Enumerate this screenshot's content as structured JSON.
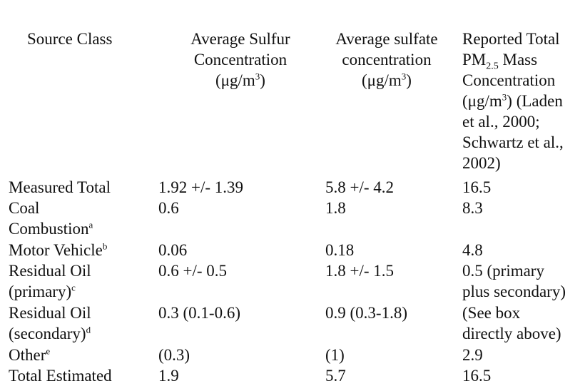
{
  "table": {
    "headers": {
      "source_class": "Source Class",
      "sulfur": {
        "line1": "Average Sulfur",
        "line2": "Concentration",
        "unit_pre": "(μg/m",
        "unit_sup": "3",
        "unit_post": ")"
      },
      "sulfate": {
        "line1": "Average sulfate",
        "line2": "concentration",
        "unit_pre": "(μg/m",
        "unit_sup": "3",
        "unit_post": ")"
      },
      "pm": {
        "line1": "Reported Total",
        "line2_pre": "PM",
        "line2_sub": "2.5",
        "line2_post": " Mass",
        "line3": "Concentration",
        "line4_pre": "(μg/m",
        "line4_sup": "3",
        "line4_post": ") (Laden",
        "line5": "et al., 2000;",
        "line6": "Schwartz et al.,",
        "line7": "2002)"
      }
    },
    "rows": [
      {
        "source": "Measured Total",
        "sulfur": "1.92 +/- 1.39",
        "sulfate": "5.8 +/- 4.2",
        "pm": "16.5"
      },
      {
        "source_l1": "Coal",
        "source_l2": "Combustion",
        "source_sup": "a",
        "sulfur": "0.6",
        "sulfate": "1.8",
        "pm": "8.3"
      },
      {
        "source": "Motor Vehicle",
        "source_sup": "b",
        "sulfur": "0.06",
        "sulfate": "0.18",
        "pm": "4.8"
      },
      {
        "source_l1": "Residual Oil",
        "source_l2": "(primary)",
        "source_sup": "c",
        "sulfur": "0.6 +/- 0.5",
        "sulfate": "1.8 +/- 1.5",
        "pm_l1": "0.5 (primary",
        "pm_l2": "plus secondary)"
      },
      {
        "source_l1": "Residual Oil",
        "source_l2": "(secondary)",
        "source_sup": "d",
        "sulfur": "0.3 (0.1-0.6)",
        "sulfate": "0.9 (0.3-1.8)",
        "pm_l1": "(See box",
        "pm_l2": "directly above)"
      },
      {
        "source": "Other",
        "source_sup": "e",
        "sulfur": "(0.3)",
        "sulfate": "(1)",
        "pm": "2.9"
      },
      {
        "source": "Total Estimated",
        "sulfur": "1.9",
        "sulfate": "5.7",
        "pm": "16.5"
      }
    ]
  }
}
